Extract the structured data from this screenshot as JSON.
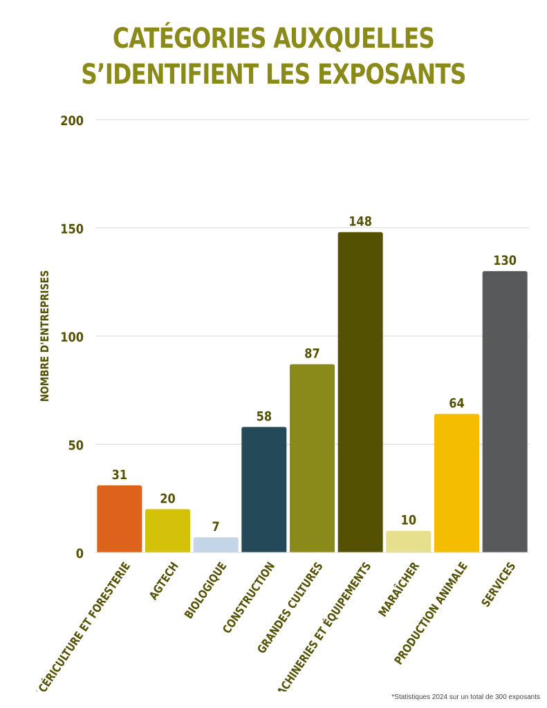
{
  "chart_data": {
    "type": "bar",
    "title_lines": [
      "CATÉGORIES AUXQUELLES",
      "S’IDENTIFIENT LES EXPOSANTS"
    ],
    "ylabel": "NOMBRE D'ENTREPRISES",
    "xlabel": "",
    "ylim": [
      0,
      200
    ],
    "yticks": [
      0,
      50,
      100,
      150,
      200
    ],
    "grid": true,
    "categories": [
      "ACÉRICULTURE ET FORESTERIE",
      "AGTECH",
      "BIOLOGIQUE",
      "CONSTRUCTION",
      "GRANDES CULTURES",
      "MACHINERIES ET ÉQUIPEMENTS",
      "MARAÎCHER",
      "PRODUCTION ANIMALE",
      "SERVICES"
    ],
    "values": [
      31,
      20,
      7,
      58,
      87,
      148,
      10,
      64,
      130
    ],
    "bar_colors": [
      "#dd621b",
      "#d4c10a",
      "#c5d5e8",
      "#244a5a",
      "#8a8a1b",
      "#545103",
      "#e6e08e",
      "#f4bd00",
      "#58595b"
    ],
    "label_color": "#545103",
    "title_color": "#8a8a1b",
    "footnote": "*Statistiques 2024 sur un total de 300 exposants"
  }
}
